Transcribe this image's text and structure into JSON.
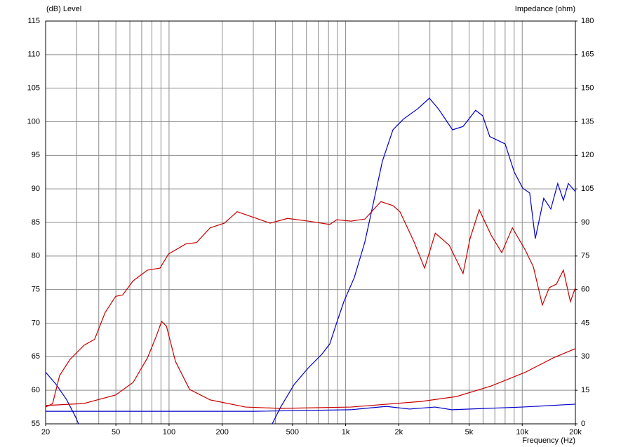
{
  "chart_data": {
    "type": "line",
    "y_label": "(dB)  Level",
    "y2_label": "Impedance  (ohm)",
    "x_label": "Frequency  (Hz)",
    "xscale": "log",
    "xlim": [
      20,
      20000
    ],
    "ylim": [
      55,
      115
    ],
    "y2lim": [
      0,
      180
    ],
    "xticks": [
      20,
      50,
      100,
      200,
      500,
      {
        "value": 1000,
        "label": "1k"
      },
      {
        "value": 2000,
        "label": "2k"
      },
      {
        "value": 5000,
        "label": "5k"
      },
      {
        "value": 10000,
        "label": "10k"
      },
      {
        "value": 20000,
        "label": "20k"
      }
    ],
    "xgrid": [
      30,
      40,
      50,
      60,
      70,
      80,
      90,
      100,
      200,
      300,
      400,
      500,
      600,
      700,
      800,
      900,
      1000,
      2000,
      3000,
      4000,
      5000,
      6000,
      7000,
      8000,
      9000,
      10000
    ],
    "yticks": [
      55,
      60,
      65,
      70,
      75,
      80,
      85,
      90,
      95,
      100,
      105,
      110,
      115
    ],
    "y2ticks": [
      0,
      15,
      30,
      45,
      60,
      75,
      90,
      105,
      120,
      135,
      150,
      165,
      180
    ],
    "grid": true,
    "series": [
      {
        "color": "#0000c8",
        "axis": "y",
        "x": [
          20,
          22.9,
          26.3,
          29.6,
          30.7,
          200,
          384,
          428.6,
          512,
          613,
          735,
          813,
          891,
          977,
          1120,
          1285,
          1406,
          1614,
          1853,
          2125,
          2551,
          2980,
          3357,
          4030,
          4623,
          5446,
          5970,
          6546,
          7310,
          8002,
          9014,
          10070,
          11020,
          11860,
          13240,
          14520,
          15890,
          17100,
          18240,
          20000
        ],
        "values": [
          62.7,
          60.9,
          58.6,
          56,
          55,
          null,
          55,
          57.5,
          60.9,
          63.3,
          65.4,
          66.9,
          70.1,
          73.2,
          76.8,
          82.1,
          86.8,
          94.1,
          98.8,
          100.4,
          101.9,
          103.5,
          101.9,
          98.8,
          99.3,
          101.7,
          100.9,
          97.8,
          97.2,
          96.7,
          92.5,
          90.1,
          89.4,
          82.6,
          88.6,
          87,
          90.8,
          88.3,
          90.8,
          89.6
        ]
      },
      {
        "color": "#c80000",
        "axis": "y",
        "x": [
          20,
          21.9,
          24,
          27.5,
          33,
          37.9,
          43.5,
          49.9,
          54.6,
          62.6,
          75.5,
          88.9,
          99.3,
          124.5,
          143,
          171,
          206,
          243,
          283,
          373,
          469,
          613,
          813,
          891,
          1071,
          1285,
          1583,
          1853,
          2031,
          2441,
          2799,
          3218,
          3862,
          4623,
          5064,
          5707,
          6671,
          7656,
          8793,
          10350,
          11560,
          13000,
          14240,
          15600,
          17100,
          18740,
          20000
        ],
        "values": [
          57.5,
          58,
          62.2,
          64.6,
          66.7,
          67.6,
          71.6,
          74,
          74.2,
          76.3,
          77.9,
          78.2,
          80.3,
          81.8,
          82,
          84.2,
          84.9,
          86.6,
          86,
          84.9,
          85.6,
          85.2,
          84.7,
          85.4,
          85.2,
          85.5,
          88.1,
          87.5,
          86.6,
          82.1,
          78.2,
          83.4,
          81.6,
          77.4,
          82.6,
          86.9,
          83.1,
          80.5,
          84.2,
          81,
          78.4,
          72.7,
          75.3,
          75.8,
          77.9,
          73.2,
          75.3
        ]
      },
      {
        "color": "#c80000",
        "axis": "y2",
        "x": [
          20,
          33,
          49.9,
          62.6,
          75.5,
          84.4,
          90.8,
          96.7,
          108.7,
          130.7,
          171,
          271,
          428.6,
          1071,
          2674,
          4240,
          6671,
          10500,
          15000,
          20000
        ],
        "values": [
          8.2,
          9.1,
          12.9,
          18.5,
          29.5,
          38.9,
          45.8,
          43.6,
          27.9,
          15.4,
          10.7,
          7.5,
          6.9,
          7.5,
          10,
          12.2,
          16.9,
          23.2,
          29.5,
          33.6
        ]
      },
      {
        "color": "#0000c8",
        "axis": "y2",
        "x": [
          20,
          300,
          1071,
          1700,
          2300,
          3200,
          4000,
          10000,
          20000
        ],
        "values": [
          5.6,
          5.6,
          6.3,
          7.8,
          6.6,
          7.5,
          6.3,
          7.5,
          8.8
        ]
      }
    ]
  }
}
